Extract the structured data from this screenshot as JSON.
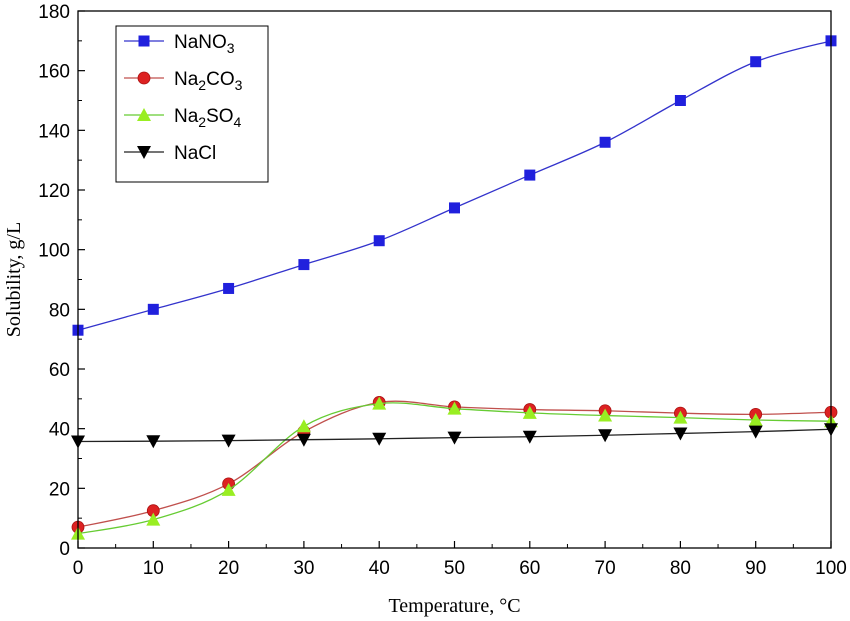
{
  "chart_data": {
    "type": "line",
    "title": "",
    "xlabel": "Temperature, °C",
    "ylabel": "Solubility, g/L",
    "xlim": [
      0,
      100
    ],
    "ylim": [
      0,
      180
    ],
    "xticks": [
      0,
      10,
      20,
      30,
      40,
      50,
      60,
      70,
      80,
      90,
      100
    ],
    "yticks": [
      0,
      20,
      40,
      60,
      80,
      100,
      120,
      140,
      160,
      180
    ],
    "grid": false,
    "legend_position": "top-left",
    "x": [
      0,
      10,
      20,
      30,
      40,
      50,
      60,
      70,
      80,
      90,
      100
    ],
    "series": [
      {
        "name": "NaNO3",
        "label_parts": [
          {
            "t": "NaNO"
          },
          {
            "t": "3",
            "sub": true
          }
        ],
        "color": "#3333cc",
        "marker": "square",
        "marker_color": "#2020dd",
        "values": [
          73,
          80,
          87,
          95,
          103,
          114,
          125,
          136,
          150,
          163,
          170
        ]
      },
      {
        "name": "Na2CO3",
        "label_parts": [
          {
            "t": "Na"
          },
          {
            "t": "2",
            "sub": true
          },
          {
            "t": "CO"
          },
          {
            "t": "3",
            "sub": true
          }
        ],
        "color": "#c0504d",
        "marker": "circle",
        "marker_color": "#dd2222",
        "values": [
          7,
          12.5,
          21.5,
          39,
          48.8,
          47.3,
          46.4,
          46,
          45.2,
          44.8,
          45.5
        ]
      },
      {
        "name": "Na2SO4",
        "label_parts": [
          {
            "t": "Na"
          },
          {
            "t": "2",
            "sub": true
          },
          {
            "t": "SO"
          },
          {
            "t": "4",
            "sub": true
          }
        ],
        "color": "#66cc33",
        "marker": "triangle-up",
        "marker_color": "#99ee22",
        "values": [
          4.8,
          9.5,
          19.5,
          40.8,
          48.4,
          46.7,
          45.3,
          44.4,
          43.7,
          42.9,
          42.5
        ]
      },
      {
        "name": "NaCl",
        "label_parts": [
          {
            "t": "NaCl"
          }
        ],
        "color": "#222222",
        "marker": "triangle-down",
        "marker_color": "#000000",
        "values": [
          35.7,
          35.8,
          36,
          36.3,
          36.6,
          37,
          37.3,
          37.8,
          38.4,
          39,
          39.8
        ]
      }
    ]
  }
}
